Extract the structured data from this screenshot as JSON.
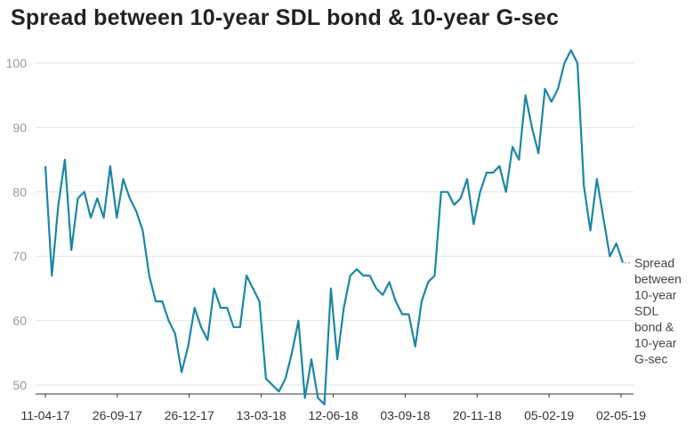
{
  "chart_data": {
    "type": "line",
    "title": "Spread between 10-year SDL bond & 10-year G-sec",
    "xlabel": "",
    "ylabel": "",
    "ylim": [
      46,
      103
    ],
    "yticks": [
      50,
      60,
      70,
      80,
      90,
      100
    ],
    "xtick_labels": [
      "11-04-17",
      "26-09-17",
      "26-12-17",
      "13-03-18",
      "12-06-18",
      "03-09-18",
      "20-11-18",
      "05-02-19",
      "02-05-19"
    ],
    "grid": "horizontal",
    "legend": "end-of-line label",
    "colors": {
      "line": "#1b86a6",
      "grid": "#e3e3e3",
      "axis": "#333333"
    },
    "series": [
      {
        "name": "Spread between 10-year SDL bond & 10-year G-sec",
        "values": [
          84,
          67,
          78,
          85,
          71,
          79,
          80,
          76,
          79,
          76,
          84,
          76,
          82,
          79,
          77,
          74,
          67,
          63,
          63,
          60,
          58,
          52,
          56,
          62,
          59,
          57,
          65,
          62,
          62,
          59,
          59,
          67,
          65,
          63,
          51,
          50,
          49,
          51,
          55,
          60,
          48,
          54,
          48,
          47,
          65,
          54,
          62,
          67,
          68,
          67,
          67,
          65,
          64,
          66,
          63,
          61,
          61,
          56,
          63,
          66,
          67,
          80,
          80,
          78,
          79,
          82,
          75,
          80,
          83,
          83,
          84,
          80,
          87,
          85,
          95,
          90,
          86,
          96,
          94,
          96,
          100,
          102,
          100,
          81,
          74,
          82,
          76,
          70,
          72,
          69
        ]
      }
    ]
  }
}
